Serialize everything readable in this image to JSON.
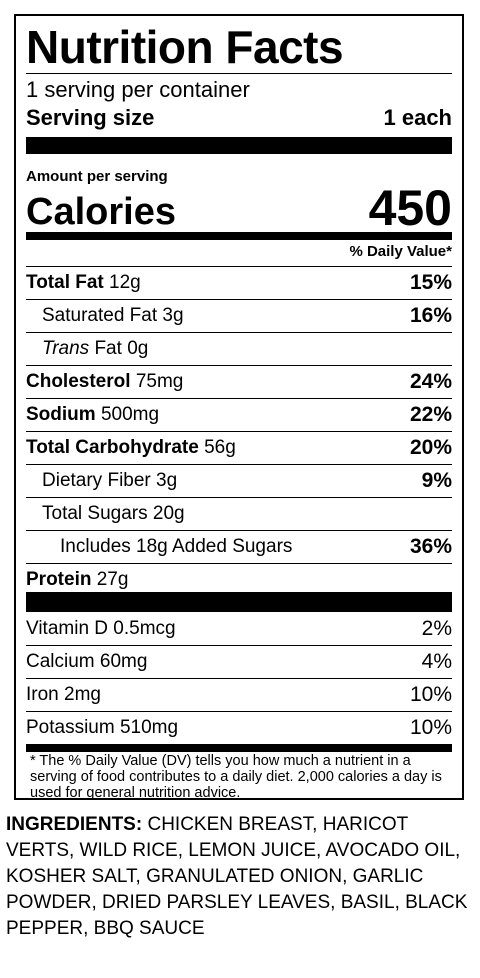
{
  "label": {
    "title": "Nutrition Facts",
    "servings_per_container": "1 serving per container",
    "serving_size_label": "Serving size",
    "serving_size_value": "1 each",
    "amount_per_serving": "Amount per serving",
    "calories_label": "Calories",
    "calories_value": "450",
    "daily_value_header": "% Daily Value*",
    "nutrients": [
      {
        "name": "Total Fat",
        "amount": "12g",
        "dv": "15%"
      },
      {
        "name": "Saturated Fat",
        "amount": "3g",
        "dv": "16%"
      },
      {
        "name_italic": "Trans",
        "name": "Fat",
        "amount": "0g",
        "dv": ""
      },
      {
        "name": "Cholesterol",
        "amount": "75mg",
        "dv": "24%"
      },
      {
        "name": "Sodium",
        "amount": "500mg",
        "dv": "22%"
      },
      {
        "name": "Total Carbohydrate",
        "amount": "56g",
        "dv": "20%"
      },
      {
        "name": "Dietary Fiber",
        "amount": "3g",
        "dv": "9%"
      },
      {
        "name": "Total Sugars",
        "amount": "20g",
        "dv": ""
      },
      {
        "name": "Includes 18g Added Sugars",
        "amount": "",
        "dv": "36%"
      },
      {
        "name": "Protein",
        "amount": "27g",
        "dv": ""
      }
    ],
    "vitamins": [
      {
        "name": "Vitamin D",
        "amount": "0.5mcg",
        "dv": "2%"
      },
      {
        "name": "Calcium",
        "amount": "60mg",
        "dv": "4%"
      },
      {
        "name": "Iron",
        "amount": "2mg",
        "dv": "10%"
      },
      {
        "name": "Potassium",
        "amount": "510mg",
        "dv": "10%"
      }
    ],
    "footnote": "* The % Daily Value (DV) tells you how much a nutrient in a serving of food contributes to a daily diet. 2,000 calories a day is used for general nutrition advice."
  },
  "ingredients": {
    "label": "INGREDIENTS:",
    "text": "CHICKEN BREAST, HARICOT VERTS, WILD RICE, LEMON JUICE, AVOCADO OIL, KOSHER SALT, GRANULATED ONION, GARLIC POWDER, DRIED PARSLEY LEAVES, BASIL, BLACK PEPPER, BBQ SAUCE"
  }
}
